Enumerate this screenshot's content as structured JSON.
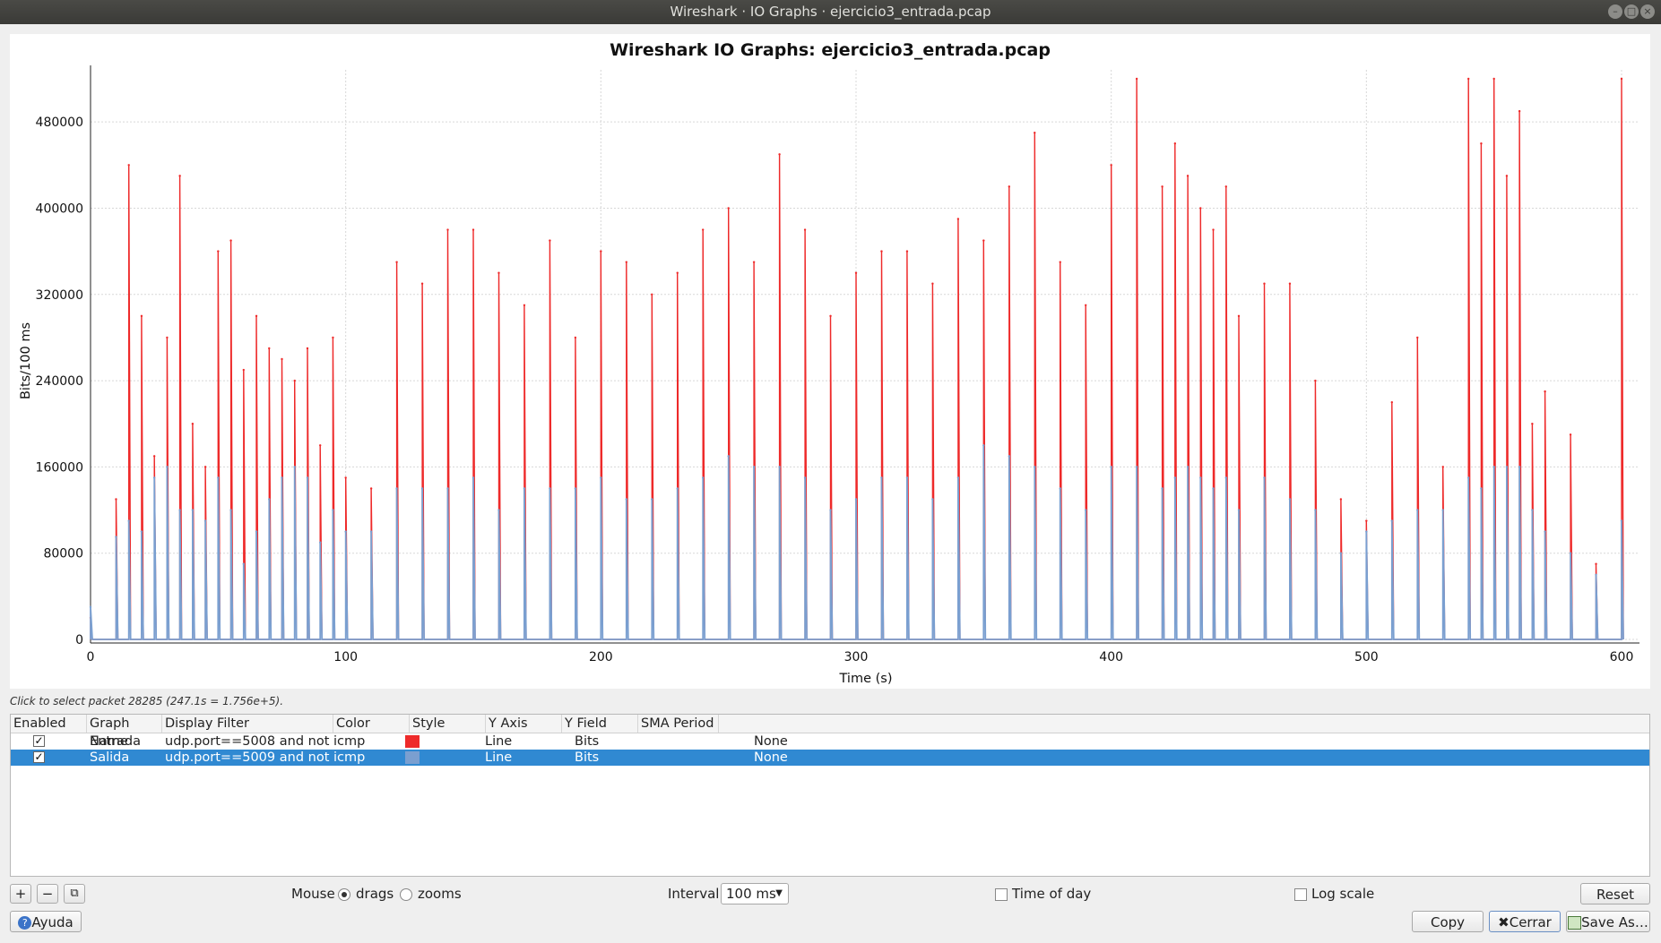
{
  "window": {
    "title": "Wireshark · IO Graphs · ejercicio3_entrada.pcap",
    "buttons": {
      "minimize": "–",
      "maximize": "□",
      "close": "×"
    }
  },
  "chart_data": {
    "type": "line",
    "title": "Wireshark IO Graphs: ejercicio3_entrada.pcap",
    "xlabel": "Time (s)",
    "ylabel": "Bits/100 ms",
    "xlim": [
      0,
      600
    ],
    "ylim": [
      0,
      520000
    ],
    "x_ticks": [
      "0",
      "100",
      "200",
      "300",
      "400",
      "500",
      "600"
    ],
    "y_ticks": [
      "0",
      "80000",
      "160000",
      "240000",
      "320000",
      "400000",
      "480000"
    ],
    "grid": true,
    "series": [
      {
        "name": "Entrada",
        "color": "#ee2a2a",
        "x": [
          0,
          10,
          15,
          20,
          25,
          30,
          35,
          40,
          45,
          50,
          55,
          60,
          65,
          70,
          75,
          80,
          85,
          90,
          95,
          100,
          110,
          120,
          130,
          140,
          150,
          160,
          170,
          180,
          190,
          200,
          210,
          220,
          230,
          240,
          250,
          260,
          270,
          280,
          290,
          300,
          310,
          320,
          330,
          340,
          350,
          360,
          370,
          380,
          390,
          400,
          410,
          420,
          425,
          430,
          435,
          440,
          445,
          450,
          460,
          470,
          480,
          490,
          500,
          510,
          520,
          530,
          540,
          545,
          550,
          555,
          560,
          565,
          570,
          580,
          590,
          600
        ],
        "values": [
          20000,
          130000,
          440000,
          300000,
          170000,
          280000,
          430000,
          200000,
          160000,
          360000,
          370000,
          250000,
          300000,
          270000,
          260000,
          240000,
          270000,
          180000,
          280000,
          150000,
          140000,
          350000,
          330000,
          380000,
          380000,
          340000,
          310000,
          370000,
          280000,
          360000,
          350000,
          320000,
          340000,
          380000,
          400000,
          350000,
          450000,
          380000,
          300000,
          340000,
          360000,
          360000,
          330000,
          390000,
          370000,
          420000,
          470000,
          350000,
          310000,
          440000,
          520000,
          420000,
          460000,
          430000,
          400000,
          380000,
          420000,
          300000,
          330000,
          330000,
          240000,
          130000,
          110000,
          220000,
          280000,
          160000,
          520000,
          460000,
          520000,
          430000,
          490000,
          200000,
          230000,
          190000,
          70000,
          520000
        ]
      },
      {
        "name": "Salida",
        "color": "#7a9fd0",
        "x": [
          0,
          10,
          15,
          20,
          25,
          30,
          35,
          40,
          45,
          50,
          55,
          60,
          65,
          70,
          75,
          80,
          85,
          90,
          95,
          100,
          110,
          120,
          130,
          140,
          150,
          160,
          170,
          180,
          190,
          200,
          210,
          220,
          230,
          240,
          250,
          260,
          270,
          280,
          290,
          300,
          310,
          320,
          330,
          340,
          350,
          360,
          370,
          380,
          390,
          400,
          410,
          420,
          425,
          430,
          435,
          440,
          445,
          450,
          460,
          470,
          480,
          490,
          500,
          510,
          520,
          530,
          540,
          545,
          550,
          555,
          560,
          565,
          570,
          580,
          590,
          600
        ],
        "values": [
          30000,
          95000,
          110000,
          100000,
          150000,
          160000,
          120000,
          120000,
          110000,
          150000,
          120000,
          70000,
          100000,
          130000,
          150000,
          160000,
          150000,
          90000,
          120000,
          100000,
          100000,
          140000,
          140000,
          140000,
          150000,
          120000,
          140000,
          140000,
          140000,
          150000,
          130000,
          130000,
          140000,
          150000,
          170000,
          160000,
          160000,
          150000,
          120000,
          130000,
          150000,
          150000,
          130000,
          150000,
          180000,
          170000,
          160000,
          140000,
          120000,
          160000,
          160000,
          140000,
          150000,
          160000,
          150000,
          140000,
          150000,
          120000,
          150000,
          130000,
          120000,
          80000,
          100000,
          110000,
          120000,
          120000,
          150000,
          140000,
          160000,
          160000,
          160000,
          120000,
          100000,
          80000,
          60000,
          110000
        ]
      }
    ]
  },
  "status_hint": "Click to select packet 28285 (247.1s = 1.756e+5).",
  "graph_table": {
    "headers": [
      "Enabled",
      "Graph Name",
      "Display Filter",
      "Color",
      "Style",
      "Y Axis",
      "Y Field",
      "SMA Period"
    ],
    "rows": [
      {
        "enabled": "✓",
        "name": "Entrada",
        "filter": "udp.port==5008 and not icmp",
        "color": "#ee2a2a",
        "style": "Line",
        "y_axis": "Bits",
        "y_field": "",
        "sma": "None"
      },
      {
        "enabled": "✓",
        "name": "Salida",
        "filter": "udp.port==5009 and not icmp",
        "color": "#7a9fd0",
        "style": "Line",
        "y_axis": "Bits",
        "y_field": "",
        "sma": "None"
      }
    ]
  },
  "controls": {
    "add": "+",
    "remove": "−",
    "copy_graph": "⧉",
    "mouse_label": "Mouse",
    "drags_label": "drags",
    "zooms_label": "zooms",
    "interval_label": "Interval",
    "interval_value": "100 ms",
    "time_of_day_label": "Time of day",
    "log_scale_label": "Log scale",
    "reset_label": "Reset",
    "help_label": "Ayuda",
    "copy_label": "Copy",
    "close_label": "Cerrar",
    "save_as_label": "Save As…"
  }
}
